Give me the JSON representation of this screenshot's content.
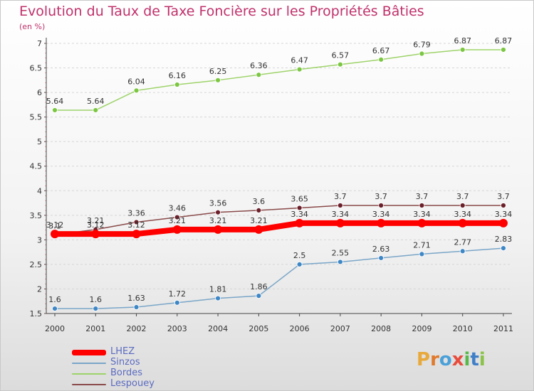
{
  "title": "Evolution du Taux de Taxe Foncière sur les Propriétés Bâties",
  "subtitle": "(en %)",
  "logo": {
    "text": "Proxiti",
    "letters": [
      {
        "ch": "P",
        "color": "#e8a93a"
      },
      {
        "ch": "r",
        "color": "#e07a2c"
      },
      {
        "ch": "o",
        "color": "#4aa0d8"
      },
      {
        "ch": "x",
        "color": "#e74c3c"
      },
      {
        "ch": "i",
        "color": "#58b84a"
      },
      {
        "ch": "t",
        "color": "#3f7fc8"
      },
      {
        "ch": "i",
        "color": "#8bc34a"
      }
    ]
  },
  "chart_data": {
    "type": "line",
    "title": "Evolution du Taux de Taxe Foncière sur les Propriétés Bâties",
    "ylabel": "(en %)",
    "xlabel": "",
    "x": [
      "2000",
      "2001",
      "2002",
      "2003",
      "2004",
      "2005",
      "2006",
      "2007",
      "2008",
      "2009",
      "2010",
      "2011"
    ],
    "ylim": [
      1.5,
      7
    ],
    "yticks": [
      "1.5",
      "2",
      "2.5",
      "3",
      "3.5",
      "4",
      "4.5",
      "5",
      "5.5",
      "6",
      "6.5",
      "7"
    ],
    "grid": true,
    "legend_position": "bottom-left",
    "series": [
      {
        "name": "LHEZ",
        "color": "#ff0000",
        "width": 8,
        "marker_color": "#ff0000",
        "marker_radius": 6,
        "values": [
          3.12,
          3.12,
          3.12,
          3.21,
          3.21,
          3.21,
          3.34,
          3.34,
          3.34,
          3.34,
          3.34,
          3.34
        ],
        "labels": [
          "3.12",
          "3.12",
          "3.12",
          "3.21",
          "3.21",
          "3.21",
          "3.34",
          "3.34",
          "3.34",
          "3.34",
          "3.34",
          "3.34"
        ]
      },
      {
        "name": "Sinzos",
        "color": "#7aa6c8",
        "width": 1.5,
        "marker_color": "#3e87c6",
        "marker_radius": 3.5,
        "values": [
          1.6,
          1.6,
          1.63,
          1.72,
          1.81,
          1.86,
          2.5,
          2.55,
          2.63,
          2.71,
          2.77,
          2.83
        ],
        "labels": [
          "1.6",
          "1.6",
          "1.63",
          "1.72",
          "1.81",
          "1.86",
          "2.5",
          "2.55",
          "2.63",
          "2.71",
          "2.77",
          "2.83"
        ]
      },
      {
        "name": "Bordes",
        "color": "#9ed36a",
        "width": 1.5,
        "marker_color": "#7cc742",
        "marker_radius": 3.5,
        "values": [
          5.64,
          5.64,
          6.04,
          6.16,
          6.25,
          6.36,
          6.47,
          6.57,
          6.67,
          6.79,
          6.87,
          6.87
        ],
        "labels": [
          "5.64",
          "5.64",
          "6.04",
          "6.16",
          "6.25",
          "6.36",
          "6.47",
          "6.57",
          "6.67",
          "6.79",
          "6.87",
          "6.87"
        ]
      },
      {
        "name": "Lespouey",
        "color": "#8a4a4a",
        "width": 1.5,
        "marker_color": "#6b1f2a",
        "marker_radius": 3.5,
        "values": [
          3.1,
          3.21,
          3.36,
          3.46,
          3.56,
          3.6,
          3.65,
          3.7,
          3.7,
          3.7,
          3.7,
          3.7
        ],
        "labels": [
          "3.1",
          "3.21",
          "3.36",
          "3.46",
          "3.56",
          "3.6",
          "3.65",
          "3.7",
          "3.7",
          "3.7",
          "3.7",
          "3.7"
        ]
      }
    ],
    "legend": [
      {
        "name": "LHEZ",
        "color": "#ff0000",
        "text_color": "#5b6bc0"
      },
      {
        "name": "Sinzos",
        "color": "#7aa6c8",
        "text_color": "#5b6bc0"
      },
      {
        "name": "Bordes",
        "color": "#9ed36a",
        "text_color": "#5b6bc0"
      },
      {
        "name": "Lespouey",
        "color": "#8a4a4a",
        "text_color": "#5b6bc0"
      }
    ]
  }
}
